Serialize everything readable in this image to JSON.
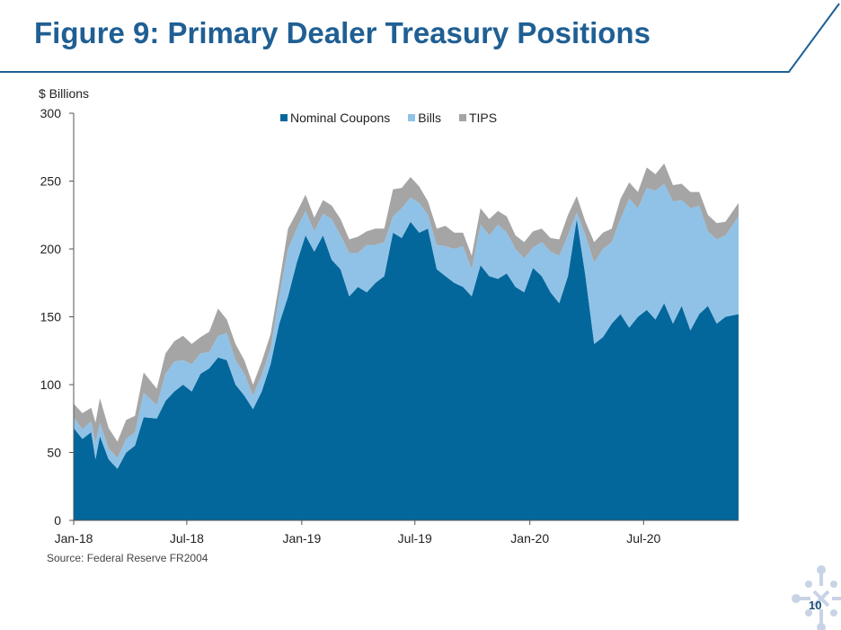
{
  "title": "Figure 9: Primary Dealer Treasury Positions",
  "source": "Source: Federal Reserve FR2004",
  "page_number": "10",
  "chart_data": {
    "type": "area",
    "stacked": true,
    "ylabel": "$ Billions",
    "ylim": [
      0,
      300
    ],
    "yticks": [
      0,
      50,
      100,
      150,
      200,
      250,
      300
    ],
    "x_range": [
      "2018-01-01",
      "2020-11-30"
    ],
    "x_ticks": [
      {
        "date": "2018-01-01",
        "label": "Jan-18"
      },
      {
        "date": "2018-07-01",
        "label": "Jul-18"
      },
      {
        "date": "2019-01-01",
        "label": "Jan-19"
      },
      {
        "date": "2019-07-01",
        "label": "Jul-19"
      },
      {
        "date": "2020-01-01",
        "label": "Jan-20"
      },
      {
        "date": "2020-07-01",
        "label": "Jul-20"
      }
    ],
    "legend_position": "top-center",
    "grid": false,
    "series": [
      {
        "name": "Nominal Coupons",
        "color": "#04679b",
        "points": [
          [
            "2018-01-01",
            68
          ],
          [
            "2018-01-15",
            60
          ],
          [
            "2018-01-29",
            65
          ],
          [
            "2018-02-05",
            45
          ],
          [
            "2018-02-12",
            62
          ],
          [
            "2018-02-26",
            45
          ],
          [
            "2018-03-12",
            38
          ],
          [
            "2018-03-26",
            50
          ],
          [
            "2018-04-09",
            55
          ],
          [
            "2018-04-23",
            76
          ],
          [
            "2018-05-14",
            75
          ],
          [
            "2018-05-28",
            88
          ],
          [
            "2018-06-11",
            95
          ],
          [
            "2018-06-25",
            100
          ],
          [
            "2018-07-09",
            95
          ],
          [
            "2018-07-23",
            108
          ],
          [
            "2018-08-06",
            112
          ],
          [
            "2018-08-20",
            120
          ],
          [
            "2018-09-03",
            118
          ],
          [
            "2018-09-17",
            100
          ],
          [
            "2018-10-01",
            92
          ],
          [
            "2018-10-15",
            82
          ],
          [
            "2018-10-29",
            95
          ],
          [
            "2018-11-12",
            115
          ],
          [
            "2018-11-26",
            145
          ],
          [
            "2018-12-10",
            165
          ],
          [
            "2018-12-24",
            190
          ],
          [
            "2019-01-07",
            210
          ],
          [
            "2019-01-21",
            198
          ],
          [
            "2019-02-04",
            210
          ],
          [
            "2019-02-18",
            192
          ],
          [
            "2019-03-04",
            185
          ],
          [
            "2019-03-18",
            165
          ],
          [
            "2019-04-01",
            172
          ],
          [
            "2019-04-15",
            168
          ],
          [
            "2019-04-29",
            175
          ],
          [
            "2019-05-13",
            180
          ],
          [
            "2019-05-27",
            212
          ],
          [
            "2019-06-10",
            208
          ],
          [
            "2019-06-24",
            220
          ],
          [
            "2019-07-08",
            212
          ],
          [
            "2019-07-22",
            215
          ],
          [
            "2019-08-05",
            185
          ],
          [
            "2019-08-19",
            180
          ],
          [
            "2019-09-02",
            175
          ],
          [
            "2019-09-16",
            172
          ],
          [
            "2019-09-30",
            165
          ],
          [
            "2019-10-14",
            188
          ],
          [
            "2019-10-28",
            180
          ],
          [
            "2019-11-11",
            178
          ],
          [
            "2019-11-25",
            182
          ],
          [
            "2019-12-09",
            172
          ],
          [
            "2019-12-23",
            168
          ],
          [
            "2020-01-06",
            186
          ],
          [
            "2020-01-20",
            180
          ],
          [
            "2020-02-03",
            168
          ],
          [
            "2020-02-17",
            160
          ],
          [
            "2020-03-02",
            180
          ],
          [
            "2020-03-16",
            222
          ],
          [
            "2020-03-30",
            180
          ],
          [
            "2020-04-13",
            130
          ],
          [
            "2020-04-27",
            135
          ],
          [
            "2020-05-11",
            145
          ],
          [
            "2020-05-25",
            152
          ],
          [
            "2020-06-08",
            142
          ],
          [
            "2020-06-22",
            150
          ],
          [
            "2020-07-06",
            155
          ],
          [
            "2020-07-20",
            148
          ],
          [
            "2020-08-03",
            160
          ],
          [
            "2020-08-17",
            145
          ],
          [
            "2020-08-31",
            158
          ],
          [
            "2020-09-14",
            140
          ],
          [
            "2020-09-28",
            152
          ],
          [
            "2020-10-12",
            158
          ],
          [
            "2020-10-26",
            145
          ],
          [
            "2020-11-09",
            150
          ],
          [
            "2020-11-30",
            152
          ]
        ]
      },
      {
        "name": "Bills",
        "color": "#90c2e7",
        "points": [
          [
            "2018-01-01",
            8
          ],
          [
            "2018-01-15",
            7
          ],
          [
            "2018-01-29",
            8
          ],
          [
            "2018-02-05",
            12
          ],
          [
            "2018-02-12",
            10
          ],
          [
            "2018-02-26",
            8
          ],
          [
            "2018-03-12",
            8
          ],
          [
            "2018-03-26",
            10
          ],
          [
            "2018-04-09",
            10
          ],
          [
            "2018-04-23",
            18
          ],
          [
            "2018-05-14",
            10
          ],
          [
            "2018-05-28",
            20
          ],
          [
            "2018-06-11",
            22
          ],
          [
            "2018-06-25",
            18
          ],
          [
            "2018-07-09",
            20
          ],
          [
            "2018-07-23",
            15
          ],
          [
            "2018-08-06",
            12
          ],
          [
            "2018-08-20",
            16
          ],
          [
            "2018-09-03",
            20
          ],
          [
            "2018-09-17",
            18
          ],
          [
            "2018-10-01",
            16
          ],
          [
            "2018-10-15",
            10
          ],
          [
            "2018-10-29",
            12
          ],
          [
            "2018-11-12",
            12
          ],
          [
            "2018-11-26",
            20
          ],
          [
            "2018-12-10",
            35
          ],
          [
            "2018-12-24",
            25
          ],
          [
            "2019-01-07",
            18
          ],
          [
            "2019-01-21",
            15
          ],
          [
            "2019-02-04",
            16
          ],
          [
            "2019-02-18",
            30
          ],
          [
            "2019-03-04",
            25
          ],
          [
            "2019-03-18",
            32
          ],
          [
            "2019-04-01",
            25
          ],
          [
            "2019-04-15",
            35
          ],
          [
            "2019-04-29",
            28
          ],
          [
            "2019-05-13",
            25
          ],
          [
            "2019-05-27",
            12
          ],
          [
            "2019-06-10",
            22
          ],
          [
            "2019-06-24",
            18
          ],
          [
            "2019-07-08",
            22
          ],
          [
            "2019-07-22",
            10
          ],
          [
            "2019-08-05",
            18
          ],
          [
            "2019-08-19",
            22
          ],
          [
            "2019-09-02",
            25
          ],
          [
            "2019-09-16",
            30
          ],
          [
            "2019-09-30",
            20
          ],
          [
            "2019-10-14",
            30
          ],
          [
            "2019-10-28",
            30
          ],
          [
            "2019-11-11",
            40
          ],
          [
            "2019-11-25",
            30
          ],
          [
            "2019-12-09",
            28
          ],
          [
            "2019-12-23",
            25
          ],
          [
            "2020-01-06",
            15
          ],
          [
            "2020-01-20",
            25
          ],
          [
            "2020-02-03",
            30
          ],
          [
            "2020-02-17",
            35
          ],
          [
            "2020-03-02",
            30
          ],
          [
            "2020-03-16",
            5
          ],
          [
            "2020-03-30",
            30
          ],
          [
            "2020-04-13",
            60
          ],
          [
            "2020-04-27",
            65
          ],
          [
            "2020-05-11",
            60
          ],
          [
            "2020-05-25",
            70
          ],
          [
            "2020-06-08",
            95
          ],
          [
            "2020-06-22",
            80
          ],
          [
            "2020-07-06",
            90
          ],
          [
            "2020-07-20",
            95
          ],
          [
            "2020-08-03",
            88
          ],
          [
            "2020-08-17",
            90
          ],
          [
            "2020-08-31",
            78
          ],
          [
            "2020-09-14",
            90
          ],
          [
            "2020-09-28",
            80
          ],
          [
            "2020-10-12",
            55
          ],
          [
            "2020-10-26",
            62
          ],
          [
            "2020-11-09",
            60
          ],
          [
            "2020-11-30",
            72
          ]
        ]
      },
      {
        "name": "TIPS",
        "color": "#a5a5a5",
        "points": [
          [
            "2018-01-01",
            10
          ],
          [
            "2018-01-15",
            12
          ],
          [
            "2018-01-29",
            10
          ],
          [
            "2018-02-05",
            15
          ],
          [
            "2018-02-12",
            18
          ],
          [
            "2018-02-26",
            15
          ],
          [
            "2018-03-12",
            12
          ],
          [
            "2018-03-26",
            14
          ],
          [
            "2018-04-09",
            12
          ],
          [
            "2018-04-23",
            15
          ],
          [
            "2018-05-14",
            12
          ],
          [
            "2018-05-28",
            15
          ],
          [
            "2018-06-11",
            15
          ],
          [
            "2018-06-25",
            18
          ],
          [
            "2018-07-09",
            15
          ],
          [
            "2018-07-23",
            12
          ],
          [
            "2018-08-06",
            15
          ],
          [
            "2018-08-20",
            20
          ],
          [
            "2018-09-03",
            10
          ],
          [
            "2018-09-17",
            12
          ],
          [
            "2018-10-01",
            10
          ],
          [
            "2018-10-15",
            8
          ],
          [
            "2018-10-29",
            10
          ],
          [
            "2018-11-12",
            10
          ],
          [
            "2018-11-26",
            10
          ],
          [
            "2018-12-10",
            15
          ],
          [
            "2018-12-24",
            12
          ],
          [
            "2019-01-07",
            12
          ],
          [
            "2019-01-21",
            10
          ],
          [
            "2019-02-04",
            10
          ],
          [
            "2019-02-18",
            10
          ],
          [
            "2019-03-04",
            12
          ],
          [
            "2019-03-18",
            10
          ],
          [
            "2019-04-01",
            12
          ],
          [
            "2019-04-15",
            10
          ],
          [
            "2019-04-29",
            12
          ],
          [
            "2019-05-13",
            10
          ],
          [
            "2019-05-27",
            20
          ],
          [
            "2019-06-10",
            15
          ],
          [
            "2019-06-24",
            15
          ],
          [
            "2019-07-08",
            12
          ],
          [
            "2019-07-22",
            10
          ],
          [
            "2019-08-05",
            12
          ],
          [
            "2019-08-19",
            15
          ],
          [
            "2019-09-02",
            12
          ],
          [
            "2019-09-16",
            10
          ],
          [
            "2019-09-30",
            10
          ],
          [
            "2019-10-14",
            12
          ],
          [
            "2019-10-28",
            12
          ],
          [
            "2019-11-11",
            10
          ],
          [
            "2019-11-25",
            12
          ],
          [
            "2019-12-09",
            10
          ],
          [
            "2019-12-23",
            12
          ],
          [
            "2020-01-06",
            12
          ],
          [
            "2020-01-20",
            10
          ],
          [
            "2020-02-03",
            10
          ],
          [
            "2020-02-17",
            12
          ],
          [
            "2020-03-02",
            15
          ],
          [
            "2020-03-16",
            12
          ],
          [
            "2020-03-30",
            10
          ],
          [
            "2020-04-13",
            15
          ],
          [
            "2020-04-27",
            12
          ],
          [
            "2020-05-11",
            10
          ],
          [
            "2020-05-25",
            15
          ],
          [
            "2020-06-08",
            12
          ],
          [
            "2020-06-22",
            12
          ],
          [
            "2020-07-06",
            15
          ],
          [
            "2020-07-20",
            12
          ],
          [
            "2020-08-03",
            15
          ],
          [
            "2020-08-17",
            12
          ],
          [
            "2020-08-31",
            12
          ],
          [
            "2020-09-14",
            12
          ],
          [
            "2020-09-28",
            10
          ],
          [
            "2020-10-12",
            12
          ],
          [
            "2020-10-26",
            12
          ],
          [
            "2020-11-09",
            10
          ],
          [
            "2020-11-30",
            10
          ]
        ]
      }
    ]
  }
}
